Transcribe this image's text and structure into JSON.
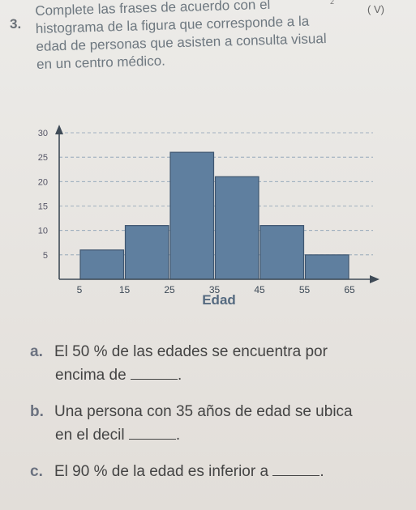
{
  "question": {
    "number": "3.",
    "corner_mark": "( V)",
    "corner_sup": "2",
    "lines": [
      "Complete las frases de acuerdo con el",
      "histograma de la figura que corresponde a la",
      "edad de personas que asisten a consulta visual",
      "en un centro médico."
    ]
  },
  "chart_data": {
    "type": "bar",
    "xlabel": "Edad",
    "ylabel": "",
    "x_ticks": [
      "5",
      "15",
      "25",
      "35",
      "45",
      "55",
      "65"
    ],
    "y_ticks": [
      "5",
      "10",
      "15",
      "20",
      "25",
      "30"
    ],
    "bins": [
      [
        5,
        15
      ],
      [
        15,
        25
      ],
      [
        25,
        35
      ],
      [
        35,
        45
      ],
      [
        45,
        55
      ],
      [
        55,
        65
      ]
    ],
    "values": [
      6,
      11,
      26,
      21,
      11,
      5
    ],
    "xlim": [
      0,
      70
    ],
    "ylim": [
      0,
      30
    ],
    "grid": true,
    "bar_color": "#5f7f9f"
  },
  "items": [
    {
      "letter": "a.",
      "line1": "El 50 % de las edades se encuentra por",
      "line2_pre": "encima de",
      "line2_post": "."
    },
    {
      "letter": "b.",
      "line1": "Una persona con 35 años de edad se ubica",
      "line2_pre": "en el decil",
      "line2_post": "."
    },
    {
      "letter": "c.",
      "line1": "El 90 % de la edad es inferior a",
      "line2_pre": "",
      "line2_post": "."
    }
  ]
}
